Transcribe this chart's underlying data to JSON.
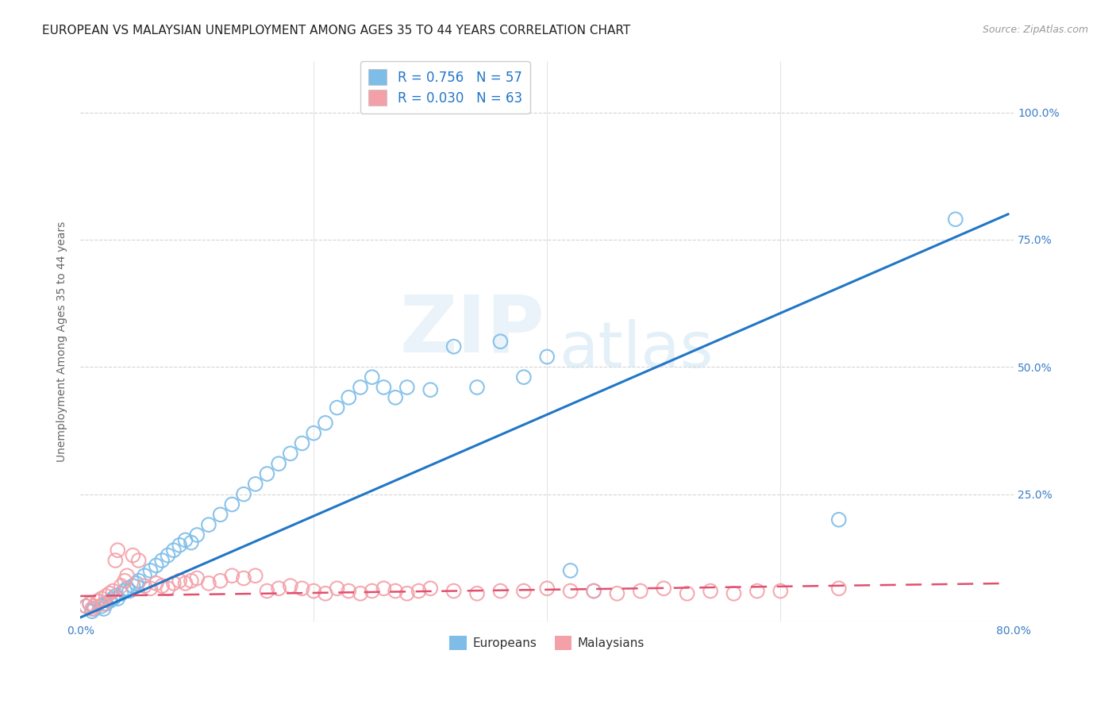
{
  "title": "EUROPEAN VS MALAYSIAN UNEMPLOYMENT AMONG AGES 35 TO 44 YEARS CORRELATION CHART",
  "source": "Source: ZipAtlas.com",
  "ylabel": "Unemployment Among Ages 35 to 44 years",
  "xlim": [
    0.0,
    0.8
  ],
  "ylim": [
    0.0,
    1.1
  ],
  "xtick_positions": [
    0.0,
    0.2,
    0.4,
    0.6,
    0.8
  ],
  "xticklabels": [
    "0.0%",
    "",
    "",
    "",
    "80.0%"
  ],
  "ytick_positions": [
    0.0,
    0.25,
    0.5,
    0.75,
    1.0
  ],
  "ytick_labels": [
    "",
    "25.0%",
    "50.0%",
    "75.0%",
    "100.0%"
  ],
  "european_color": "#7dbde8",
  "malaysian_color": "#f4a0a8",
  "european_line_color": "#2176c7",
  "malaysian_line_color": "#e05070",
  "background_color": "#ffffff",
  "grid_color": "#d0d0d0",
  "legend_R_european": "0.756",
  "legend_N_european": "57",
  "legend_R_malaysian": "0.030",
  "legend_N_malaysian": "63",
  "europeans_label": "Europeans",
  "malaysians_label": "Malaysians",
  "european_scatter_x": [
    0.005,
    0.008,
    0.01,
    0.012,
    0.015,
    0.018,
    0.02,
    0.022,
    0.025,
    0.028,
    0.03,
    0.032,
    0.035,
    0.038,
    0.04,
    0.042,
    0.045,
    0.048,
    0.05,
    0.055,
    0.06,
    0.065,
    0.07,
    0.075,
    0.08,
    0.085,
    0.09,
    0.095,
    0.1,
    0.11,
    0.12,
    0.13,
    0.14,
    0.15,
    0.16,
    0.17,
    0.18,
    0.19,
    0.2,
    0.21,
    0.22,
    0.23,
    0.24,
    0.25,
    0.26,
    0.27,
    0.28,
    0.3,
    0.32,
    0.34,
    0.36,
    0.38,
    0.4,
    0.42,
    0.44,
    0.65,
    0.75
  ],
  "european_scatter_y": [
    0.03,
    0.035,
    0.02,
    0.025,
    0.04,
    0.03,
    0.025,
    0.035,
    0.04,
    0.045,
    0.05,
    0.045,
    0.055,
    0.06,
    0.065,
    0.06,
    0.07,
    0.075,
    0.08,
    0.09,
    0.1,
    0.11,
    0.12,
    0.13,
    0.14,
    0.15,
    0.16,
    0.155,
    0.17,
    0.19,
    0.21,
    0.23,
    0.25,
    0.27,
    0.29,
    0.31,
    0.33,
    0.35,
    0.37,
    0.39,
    0.42,
    0.44,
    0.46,
    0.48,
    0.46,
    0.44,
    0.46,
    0.455,
    0.54,
    0.46,
    0.55,
    0.48,
    0.52,
    0.1,
    0.06,
    0.2,
    0.79
  ],
  "malaysian_scatter_x": [
    0.005,
    0.008,
    0.01,
    0.012,
    0.015,
    0.018,
    0.02,
    0.022,
    0.025,
    0.028,
    0.03,
    0.032,
    0.035,
    0.038,
    0.04,
    0.045,
    0.05,
    0.055,
    0.06,
    0.065,
    0.07,
    0.075,
    0.08,
    0.085,
    0.09,
    0.095,
    0.1,
    0.11,
    0.12,
    0.13,
    0.14,
    0.15,
    0.16,
    0.17,
    0.18,
    0.19,
    0.2,
    0.21,
    0.22,
    0.23,
    0.24,
    0.25,
    0.26,
    0.27,
    0.28,
    0.29,
    0.3,
    0.32,
    0.34,
    0.36,
    0.38,
    0.4,
    0.42,
    0.44,
    0.46,
    0.48,
    0.5,
    0.52,
    0.54,
    0.56,
    0.58,
    0.6,
    0.65
  ],
  "malaysian_scatter_y": [
    0.03,
    0.035,
    0.025,
    0.03,
    0.04,
    0.045,
    0.035,
    0.05,
    0.055,
    0.06,
    0.12,
    0.14,
    0.07,
    0.08,
    0.09,
    0.13,
    0.12,
    0.07,
    0.065,
    0.075,
    0.07,
    0.065,
    0.075,
    0.08,
    0.075,
    0.08,
    0.085,
    0.075,
    0.08,
    0.09,
    0.085,
    0.09,
    0.06,
    0.065,
    0.07,
    0.065,
    0.06,
    0.055,
    0.065,
    0.06,
    0.055,
    0.06,
    0.065,
    0.06,
    0.055,
    0.06,
    0.065,
    0.06,
    0.055,
    0.06,
    0.06,
    0.065,
    0.06,
    0.06,
    0.055,
    0.06,
    0.065,
    0.055,
    0.06,
    0.055,
    0.06,
    0.06,
    0.065
  ],
  "european_line_x": [
    0.0,
    0.795
  ],
  "european_line_y": [
    0.008,
    0.8
  ],
  "malaysian_line_x": [
    0.0,
    0.795
  ],
  "malaysian_line_y": [
    0.05,
    0.075
  ],
  "title_fontsize": 11,
  "source_fontsize": 9,
  "axis_label_fontsize": 10,
  "tick_fontsize": 10,
  "legend_fontsize": 12
}
